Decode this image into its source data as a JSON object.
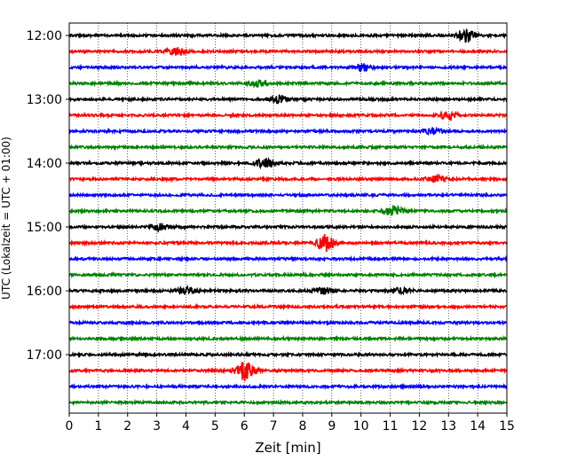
{
  "chart_data": {
    "type": "line",
    "title": "",
    "xlabel": "Zeit  [min]",
    "ylabel": "UTC (Lokalzeit = UTC + 01:00)",
    "xlim": [
      0,
      15
    ],
    "x_ticks": [
      0,
      1,
      2,
      3,
      4,
      5,
      6,
      7,
      8,
      9,
      10,
      11,
      12,
      13,
      14,
      15
    ],
    "x_tick_labels": [
      "0",
      "1",
      "2",
      "3",
      "4",
      "5",
      "6",
      "7",
      "8",
      "9",
      "10",
      "11",
      "12",
      "13",
      "14",
      "15"
    ],
    "y_tick_labels": [
      "12:00",
      "13:00",
      "14:00",
      "15:00",
      "16:00",
      "17:00"
    ],
    "grid": "vertical dotted at every minute",
    "legend": "none",
    "colors": [
      "#000000",
      "#ff0000",
      "#0000ff",
      "#008000"
    ],
    "traces": [
      {
        "start": "12:00",
        "color": "#000000",
        "events": [
          {
            "minute": 13.6,
            "amplitude": 2.2
          }
        ]
      },
      {
        "start": "12:15",
        "color": "#ff0000",
        "events": [
          {
            "minute": 3.7,
            "amplitude": 1.2
          }
        ]
      },
      {
        "start": "12:30",
        "color": "#0000ff",
        "events": [
          {
            "minute": 10.0,
            "amplitude": 1.2
          }
        ]
      },
      {
        "start": "12:45",
        "color": "#008000",
        "events": [
          {
            "minute": 6.5,
            "amplitude": 1.0
          }
        ]
      },
      {
        "start": "13:00",
        "color": "#000000",
        "events": [
          {
            "minute": 7.2,
            "amplitude": 1.3
          }
        ]
      },
      {
        "start": "13:15",
        "color": "#ff0000",
        "events": [
          {
            "minute": 13.0,
            "amplitude": 1.4
          }
        ]
      },
      {
        "start": "13:30",
        "color": "#0000ff",
        "events": [
          {
            "minute": 12.5,
            "amplitude": 1.0
          }
        ]
      },
      {
        "start": "13:45",
        "color": "#008000",
        "events": []
      },
      {
        "start": "14:00",
        "color": "#000000",
        "events": [
          {
            "minute": 6.7,
            "amplitude": 1.4
          }
        ]
      },
      {
        "start": "14:15",
        "color": "#ff0000",
        "events": [
          {
            "minute": 12.6,
            "amplitude": 1.0
          }
        ]
      },
      {
        "start": "14:30",
        "color": "#0000ff",
        "events": []
      },
      {
        "start": "14:45",
        "color": "#008000",
        "events": [
          {
            "minute": 11.1,
            "amplitude": 1.6
          }
        ]
      },
      {
        "start": "15:00",
        "color": "#000000",
        "events": [
          {
            "minute": 3.1,
            "amplitude": 1.1
          }
        ]
      },
      {
        "start": "15:15",
        "color": "#ff0000",
        "events": [
          {
            "minute": 8.8,
            "amplitude": 2.8
          }
        ]
      },
      {
        "start": "15:30",
        "color": "#0000ff",
        "events": []
      },
      {
        "start": "15:45",
        "color": "#008000",
        "events": []
      },
      {
        "start": "16:00",
        "color": "#000000",
        "events": [
          {
            "minute": 4.0,
            "amplitude": 1.2
          },
          {
            "minute": 8.7,
            "amplitude": 1.2
          },
          {
            "minute": 11.4,
            "amplitude": 1.0
          }
        ]
      },
      {
        "start": "16:15",
        "color": "#ff0000",
        "events": []
      },
      {
        "start": "16:30",
        "color": "#0000ff",
        "events": []
      },
      {
        "start": "16:45",
        "color": "#008000",
        "events": []
      },
      {
        "start": "17:00",
        "color": "#000000",
        "events": []
      },
      {
        "start": "17:15",
        "color": "#ff0000",
        "events": [
          {
            "minute": 6.0,
            "amplitude": 3.5
          }
        ]
      },
      {
        "start": "17:30",
        "color": "#0000ff",
        "events": []
      },
      {
        "start": "17:45",
        "color": "#008000",
        "events": []
      }
    ]
  }
}
